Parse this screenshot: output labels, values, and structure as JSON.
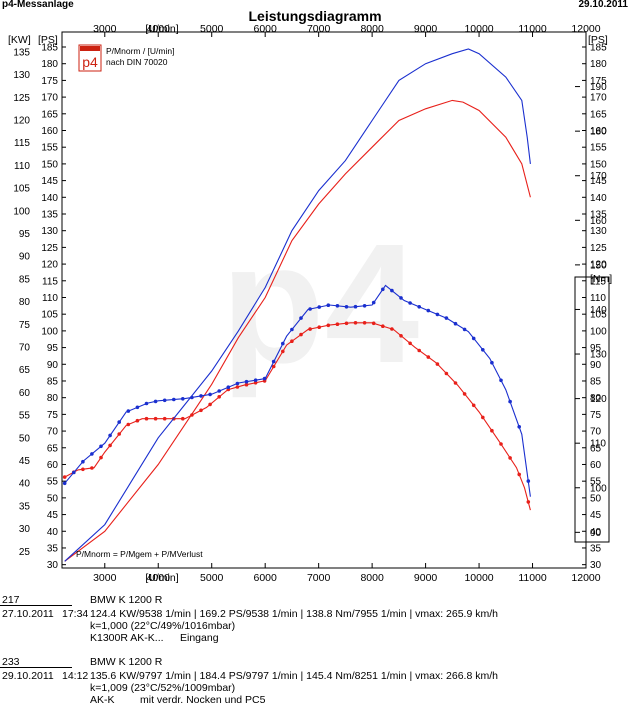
{
  "header": {
    "app_name": "p4-Messanlage",
    "date": "29.10.2011",
    "title": "Leistungsdiagramm"
  },
  "logo": {
    "text": "p4"
  },
  "legend": {
    "line1": "P/Mnorm / [U/min]",
    "line2": "nach DIN 70020",
    "bottom_note": "P/Mnorm = P/Mgem + P/MVerlust"
  },
  "chart_data": {
    "type": "line",
    "xlabel": "[U/min]",
    "x_range": [
      2200,
      12000
    ],
    "x_ticks": [
      3000,
      4000,
      5000,
      6000,
      7000,
      8000,
      9000,
      10000,
      11000,
      12000
    ],
    "power_axis": {
      "kw_label": "[KW]",
      "ps_label": "[PS]",
      "kw_ticks": [
        25,
        30,
        35,
        40,
        45,
        50,
        55,
        60,
        65,
        70,
        75,
        80,
        85,
        90,
        95,
        100,
        105,
        110,
        115,
        120,
        125,
        130,
        135
      ],
      "ps_ticks": [
        30,
        35,
        40,
        45,
        50,
        55,
        60,
        65,
        70,
        75,
        80,
        85,
        90,
        95,
        100,
        105,
        110,
        115,
        120,
        125,
        130,
        135,
        140,
        145,
        150,
        155,
        160,
        165,
        170,
        175,
        180,
        185
      ],
      "ps_range": [
        29,
        186.5
      ]
    },
    "torque_axis": {
      "label": "[Nm]",
      "ticks": [
        90,
        100,
        110,
        120,
        130,
        140,
        150,
        160,
        170,
        180,
        190
      ],
      "range": [
        82,
        200
      ]
    },
    "series": [
      {
        "name": "217",
        "color": "#e8201a",
        "power_ps": [
          [
            2250,
            31
          ],
          [
            3000,
            40
          ],
          [
            4000,
            60
          ],
          [
            4500,
            72
          ],
          [
            5000,
            84
          ],
          [
            5500,
            98
          ],
          [
            6000,
            110
          ],
          [
            6500,
            127
          ],
          [
            7000,
            138
          ],
          [
            7500,
            147
          ],
          [
            8000,
            155
          ],
          [
            8500,
            163
          ],
          [
            9000,
            166.5
          ],
          [
            9500,
            169
          ],
          [
            9700,
            168.5
          ],
          [
            10000,
            166
          ],
          [
            10500,
            158
          ],
          [
            10800,
            150
          ],
          [
            10960,
            140
          ]
        ],
        "torque_nm": [
          [
            2250,
            102.4
          ],
          [
            2500,
            104
          ],
          [
            2800,
            104.5
          ],
          [
            3000,
            108
          ],
          [
            3400,
            114
          ],
          [
            3700,
            115.5
          ],
          [
            4000,
            115.5
          ],
          [
            4500,
            115.5
          ],
          [
            4900,
            118
          ],
          [
            5300,
            122
          ],
          [
            5600,
            123
          ],
          [
            6000,
            124
          ],
          [
            6400,
            132
          ],
          [
            6800,
            135.5
          ],
          [
            7200,
            136.5
          ],
          [
            7600,
            137
          ],
          [
            8000,
            137
          ],
          [
            8400,
            135.5
          ],
          [
            8800,
            131.5
          ],
          [
            9200,
            128
          ],
          [
            9600,
            123
          ],
          [
            10000,
            117
          ],
          [
            10400,
            110
          ],
          [
            10700,
            104.5
          ],
          [
            10850,
            100
          ],
          [
            10960,
            95
          ]
        ]
      },
      {
        "name": "233",
        "color": "#1a2fcf",
        "power_ps": [
          [
            2250,
            31
          ],
          [
            3000,
            42
          ],
          [
            3500,
            55
          ],
          [
            4000,
            68
          ],
          [
            4500,
            78
          ],
          [
            5000,
            88
          ],
          [
            5500,
            100
          ],
          [
            6000,
            113
          ],
          [
            6500,
            130
          ],
          [
            7000,
            142
          ],
          [
            7500,
            151
          ],
          [
            8000,
            163
          ],
          [
            8500,
            175
          ],
          [
            9000,
            180
          ],
          [
            9500,
            183
          ],
          [
            9800,
            184.4
          ],
          [
            10000,
            183
          ],
          [
            10500,
            176
          ],
          [
            10800,
            169
          ],
          [
            10900,
            158
          ],
          [
            10960,
            150
          ]
        ],
        "torque_nm": [
          [
            2250,
            101
          ],
          [
            2600,
            106
          ],
          [
            3000,
            110
          ],
          [
            3400,
            117
          ],
          [
            3800,
            119
          ],
          [
            4000,
            119.5
          ],
          [
            4500,
            120
          ],
          [
            5000,
            121
          ],
          [
            5500,
            123.5
          ],
          [
            6000,
            124.5
          ],
          [
            6400,
            134
          ],
          [
            6800,
            140
          ],
          [
            7200,
            141
          ],
          [
            7600,
            140.5
          ],
          [
            8000,
            141
          ],
          [
            8250,
            145.4
          ],
          [
            8600,
            142
          ],
          [
            9000,
            140
          ],
          [
            9400,
            138
          ],
          [
            9800,
            135
          ],
          [
            10200,
            129
          ],
          [
            10500,
            122
          ],
          [
            10800,
            112
          ],
          [
            10960,
            98
          ]
        ]
      }
    ]
  },
  "runs": [
    {
      "id": "217",
      "date": "27.10.2011",
      "time": "17:34",
      "vehicle": "BMW  K 1200 R",
      "values": "124.4 KW/9538 1/min  |  169.2 PS/9538 1/min  |  138.8 Nm/7955 1/min | vmax: 265.9 km/h",
      "conditions": "k=1,000 (22°C/49%/1016mbar)",
      "note1": "K1300R AK-K...",
      "note2": "Eingang"
    },
    {
      "id": "233",
      "date": "29.10.2011",
      "time": "14:12",
      "vehicle": "BMW  K 1200 R",
      "values": "135.6 KW/9797 1/min  |  184.4 PS/9797 1/min  |  145.4 Nm/8251 1/min | vmax: 266.8 km/h",
      "conditions": "k=1,009 (23°C/52%/1009mbar)",
      "note1": "AK-K",
      "note2": "mit verdr. Nocken und PC5"
    }
  ]
}
